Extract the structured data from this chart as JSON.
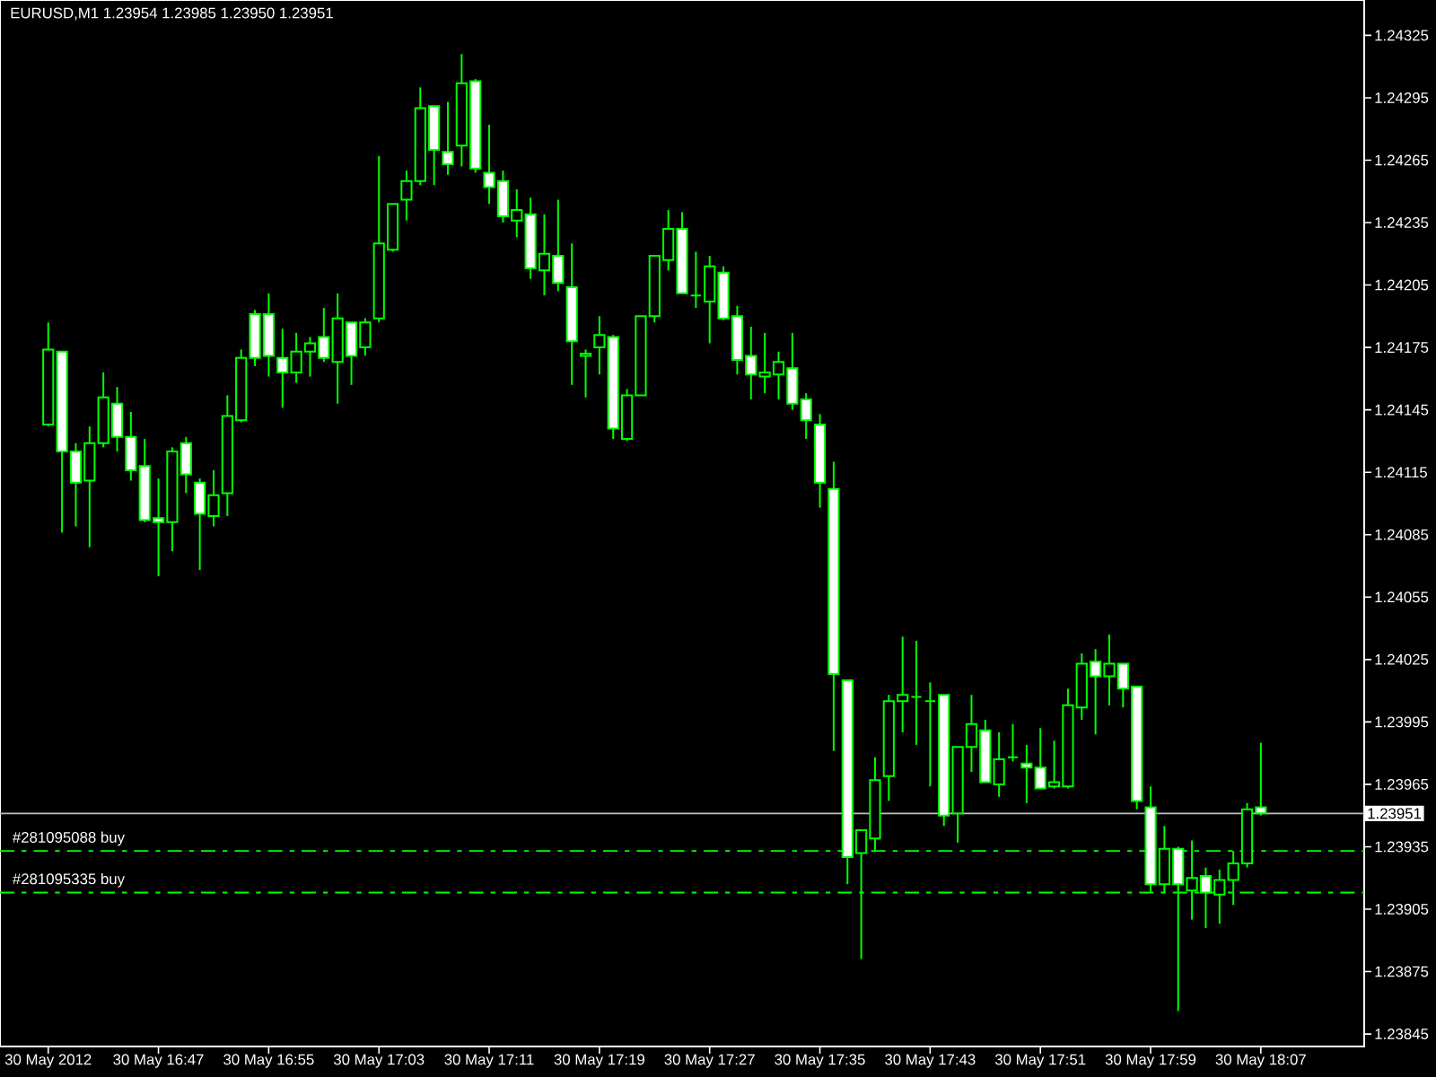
{
  "chart_data": {
    "type": "candlestick",
    "title": "EURUSD,M1 1.23954 1.23985 1.23950 1.23951",
    "color": "#00ff00",
    "categories": [
      "30 May 2012",
      null,
      null,
      null,
      null,
      null,
      null,
      null,
      "30 May 16:47",
      null,
      null,
      null,
      null,
      null,
      null,
      null,
      "30 May 16:55",
      null,
      null,
      null,
      null,
      null,
      null,
      null,
      "30 May 17:03",
      null,
      null,
      null,
      null,
      null,
      null,
      null,
      "30 May 17:11",
      null,
      null,
      null,
      null,
      null,
      null,
      null,
      "30 May 17:19",
      null,
      null,
      null,
      null,
      null,
      null,
      null,
      "30 May 17:27",
      null,
      null,
      null,
      null,
      null,
      null,
      null,
      "30 May 17:35",
      null,
      null,
      null,
      null,
      null,
      null,
      null,
      "30 May 17:43",
      null,
      null,
      null,
      null,
      null,
      null,
      null,
      "30 May 17:51",
      null,
      null,
      null,
      null,
      null,
      null,
      null,
      "30 May 17:59",
      null,
      null,
      null,
      null,
      null,
      null,
      null,
      "30 May 18:07",
      null,
      null,
      null,
      null,
      null,
      null,
      null
    ],
    "ohlc": [
      [
        1.24138,
        1.24187,
        1.24137,
        1.24174
      ],
      [
        1.24173,
        1.24173,
        1.24086,
        1.24125
      ],
      [
        1.24125,
        1.24129,
        1.24089,
        1.2411
      ],
      [
        1.24111,
        1.24137,
        1.24079,
        1.24129
      ],
      [
        1.24129,
        1.24163,
        1.24127,
        1.24151
      ],
      [
        1.24148,
        1.24156,
        1.24125,
        1.24132
      ],
      [
        1.24132,
        1.24144,
        1.24111,
        1.24116
      ],
      [
        1.24118,
        1.24131,
        1.24091,
        1.24092
      ],
      [
        1.24093,
        1.24112,
        1.24065,
        1.24091
      ],
      [
        1.24091,
        1.24127,
        1.24077,
        1.24125
      ],
      [
        1.24129,
        1.24132,
        1.24105,
        1.24114
      ],
      [
        1.2411,
        1.24112,
        1.24068,
        1.24095
      ],
      [
        1.24094,
        1.24116,
        1.24089,
        1.24104
      ],
      [
        1.24105,
        1.24152,
        1.24094,
        1.24142
      ],
      [
        1.2414,
        1.24174,
        1.24139,
        1.2417
      ],
      [
        1.24191,
        1.24193,
        1.24166,
        1.2417
      ],
      [
        1.24191,
        1.24201,
        1.24161,
        1.24171
      ],
      [
        1.2417,
        1.24184,
        1.24146,
        1.24163
      ],
      [
        1.24163,
        1.24182,
        1.24158,
        1.24173
      ],
      [
        1.24173,
        1.2418,
        1.24161,
        1.24177
      ],
      [
        1.2418,
        1.24194,
        1.24168,
        1.2417
      ],
      [
        1.24168,
        1.24201,
        1.24148,
        1.24189
      ],
      [
        1.24187,
        1.24187,
        1.24157,
        1.24171
      ],
      [
        1.24175,
        1.24189,
        1.24171,
        1.24187
      ],
      [
        1.24189,
        1.24267,
        1.24187,
        1.24225
      ],
      [
        1.24222,
        1.24244,
        1.24221,
        1.24244
      ],
      [
        1.24246,
        1.2426,
        1.24236,
        1.24255
      ],
      [
        1.24255,
        1.243,
        1.24253,
        1.2429
      ],
      [
        1.24291,
        1.24291,
        1.24253,
        1.2427
      ],
      [
        1.24269,
        1.24293,
        1.24258,
        1.24263
      ],
      [
        1.24272,
        1.24316,
        1.24262,
        1.24302
      ],
      [
        1.24303,
        1.24304,
        1.24259,
        1.24261
      ],
      [
        1.24259,
        1.24282,
        1.24244,
        1.24252
      ],
      [
        1.24255,
        1.2426,
        1.24235,
        1.24238
      ],
      [
        1.24236,
        1.24251,
        1.24228,
        1.24241
      ],
      [
        1.24239,
        1.24247,
        1.24208,
        1.24213
      ],
      [
        1.24212,
        1.24239,
        1.242,
        1.2422
      ],
      [
        1.24219,
        1.24246,
        1.24202,
        1.24206
      ],
      [
        1.24204,
        1.24225,
        1.24157,
        1.24178
      ],
      [
        1.24171,
        1.24174,
        1.24151,
        1.24172
      ],
      [
        1.24175,
        1.2419,
        1.24162,
        1.24181
      ],
      [
        1.2418,
        1.24181,
        1.24131,
        1.24136
      ],
      [
        1.24131,
        1.24155,
        1.2413,
        1.24152
      ],
      [
        1.24152,
        1.2419,
        1.24152,
        1.2419
      ],
      [
        1.2419,
        1.24219,
        1.24187,
        1.24219
      ],
      [
        1.24217,
        1.24241,
        1.24212,
        1.24232
      ],
      [
        1.24232,
        1.2424,
        1.24201,
        1.24201
      ],
      [
        1.242,
        1.24221,
        1.24194,
        1.242
      ],
      [
        1.24197,
        1.24219,
        1.24177,
        1.24214
      ],
      [
        1.24211,
        1.24214,
        1.24188,
        1.24189
      ],
      [
        1.2419,
        1.24195,
        1.24162,
        1.24169
      ],
      [
        1.24171,
        1.24185,
        1.2415,
        1.24162
      ],
      [
        1.24161,
        1.24182,
        1.24153,
        1.24163
      ],
      [
        1.24162,
        1.24173,
        1.2415,
        1.24168
      ],
      [
        1.24165,
        1.24182,
        1.24145,
        1.24148
      ],
      [
        1.2415,
        1.24153,
        1.24131,
        1.2414
      ],
      [
        1.24138,
        1.24143,
        1.24098,
        1.2411
      ],
      [
        1.24107,
        1.2412,
        1.23981,
        1.24018
      ],
      [
        1.24015,
        1.24015,
        1.23917,
        1.2393
      ],
      [
        1.23932,
        1.23943,
        1.23881,
        1.23943
      ],
      [
        1.23939,
        1.23978,
        1.23933,
        1.23967
      ],
      [
        1.23969,
        1.24008,
        1.23957,
        1.24005
      ],
      [
        1.24005,
        1.24036,
        1.2399,
        1.24008
      ],
      [
        1.24007,
        1.24034,
        1.23984,
        1.24007
      ],
      [
        1.24005,
        1.24014,
        1.23964,
        1.24005
      ],
      [
        1.24008,
        1.24008,
        1.23945,
        1.2395
      ],
      [
        1.23951,
        1.23983,
        1.23937,
        1.23983
      ],
      [
        1.23983,
        1.24008,
        1.23971,
        1.23994
      ],
      [
        1.23991,
        1.23996,
        1.23966,
        1.23966
      ],
      [
        1.23965,
        1.2399,
        1.23959,
        1.23977
      ],
      [
        1.23978,
        1.23994,
        1.23976,
        1.23978
      ],
      [
        1.23975,
        1.23984,
        1.23956,
        1.23973
      ],
      [
        1.23973,
        1.23992,
        1.23963,
        1.23963
      ],
      [
        1.23964,
        1.23986,
        1.23963,
        1.23966
      ],
      [
        1.23964,
        1.24011,
        1.23963,
        1.24003
      ],
      [
        1.24002,
        1.24028,
        1.23996,
        1.24023
      ],
      [
        1.24024,
        1.2403,
        1.23989,
        1.24017
      ],
      [
        1.24017,
        1.24037,
        1.24003,
        1.24023
      ],
      [
        1.24023,
        1.24023,
        1.24002,
        1.24011
      ],
      [
        1.24012,
        1.24012,
        1.23953,
        1.23957
      ],
      [
        1.23954,
        1.23964,
        1.23913,
        1.23917
      ],
      [
        1.23917,
        1.23945,
        1.23913,
        1.23934
      ],
      [
        1.23934,
        1.23935,
        1.23856,
        1.23917
      ],
      [
        1.23914,
        1.23938,
        1.239,
        1.2392
      ],
      [
        1.23921,
        1.23925,
        1.23896,
        1.23913
      ],
      [
        1.23912,
        1.23924,
        1.23898,
        1.23919
      ],
      [
        1.23919,
        1.23933,
        1.23907,
        1.23927
      ],
      [
        1.23927,
        1.23956,
        1.23925,
        1.23953
      ],
      [
        1.23954,
        1.23985,
        1.2395,
        1.23951
      ],
      null,
      null,
      null,
      null,
      null,
      null,
      null
    ],
    "ylim": [
      1.23839,
      1.24342
    ],
    "yticks": [
      1.23845,
      1.23875,
      1.23905,
      1.23935,
      1.23965,
      1.23995,
      1.24025,
      1.24055,
      1.24085,
      1.24115,
      1.24145,
      1.24175,
      1.24205,
      1.24235,
      1.24265,
      1.24295,
      1.24325
    ],
    "ref_lines": [
      {
        "axis": "y",
        "value": 1.23951,
        "label": "1.23951",
        "color": "#c0c0c0",
        "line_style": "solid"
      },
      {
        "axis": "y",
        "value": 1.23933,
        "label": "#281095088 buy",
        "color": "#00ff00",
        "line_style": "dashed"
      },
      {
        "axis": "y",
        "value": 1.23913,
        "label": "#281095335 buy",
        "color": "#00ff00",
        "line_style": "dashed"
      }
    ]
  }
}
